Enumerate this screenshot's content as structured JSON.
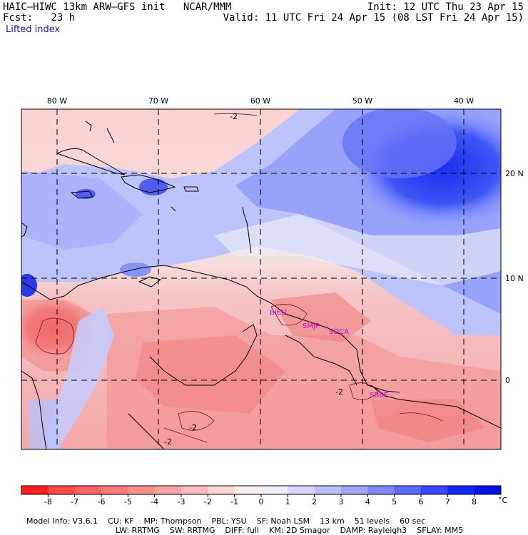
{
  "header": {
    "title": "HAIC–HIWC 13km ARW–GFS init   NCAR/MMM",
    "init": "Init: 12 UTC Thu 23 Apr 15",
    "fcst": "Fcst:   23 h",
    "valid": "Valid: 11 UTC Fri 24 Apr 15 (08 LST Fri 24 Apr 15)",
    "field": "Lifted index"
  },
  "map": {
    "lon_labels": [
      "80 W",
      "70 W",
      "60 W",
      "50 W",
      "40 W"
    ],
    "lat_labels": [
      "20 N",
      "10 N",
      "0"
    ],
    "contour_labels": [
      "-2",
      "-2",
      "-2",
      "-2"
    ],
    "stations": [
      "BIEU",
      "SMJP",
      "SOCA",
      "SBBE"
    ]
  },
  "colorbar": {
    "tick_labels": [
      "-8",
      "-7",
      "-6",
      "-5",
      "-4",
      "-3",
      "-2",
      "-1",
      "0",
      "1",
      "2",
      "3",
      "4",
      "5",
      "6",
      "7",
      "8"
    ],
    "unit": "°C",
    "colors": [
      "#ff1f1f",
      "#ff4848",
      "#ff6464",
      "#ff7a7a",
      "#ff8e8e",
      "#ffa4a4",
      "#ffbcbc",
      "#ffd6d6",
      "#fff0f0",
      "#eeeeff",
      "#d6d8ff",
      "#bcc0ff",
      "#9ea6ff",
      "#7f88ff",
      "#5d69ff",
      "#3a47ff",
      "#1428ff",
      "#0010ee"
    ]
  },
  "model_info": {
    "line1": [
      "Model Info: V3.6.1",
      "CU: KF",
      "MP: Thompson",
      "PBL: YSU",
      "SF: Noah LSM",
      "13 km",
      "51 levels",
      "60 sec"
    ],
    "line2": [
      "LW: RRTMG",
      "SW: RRTMG",
      "DIFF: full",
      "KM: 2D Smagor",
      "DAMP: Rayleigh3",
      "SFLAY: MM5"
    ]
  }
}
